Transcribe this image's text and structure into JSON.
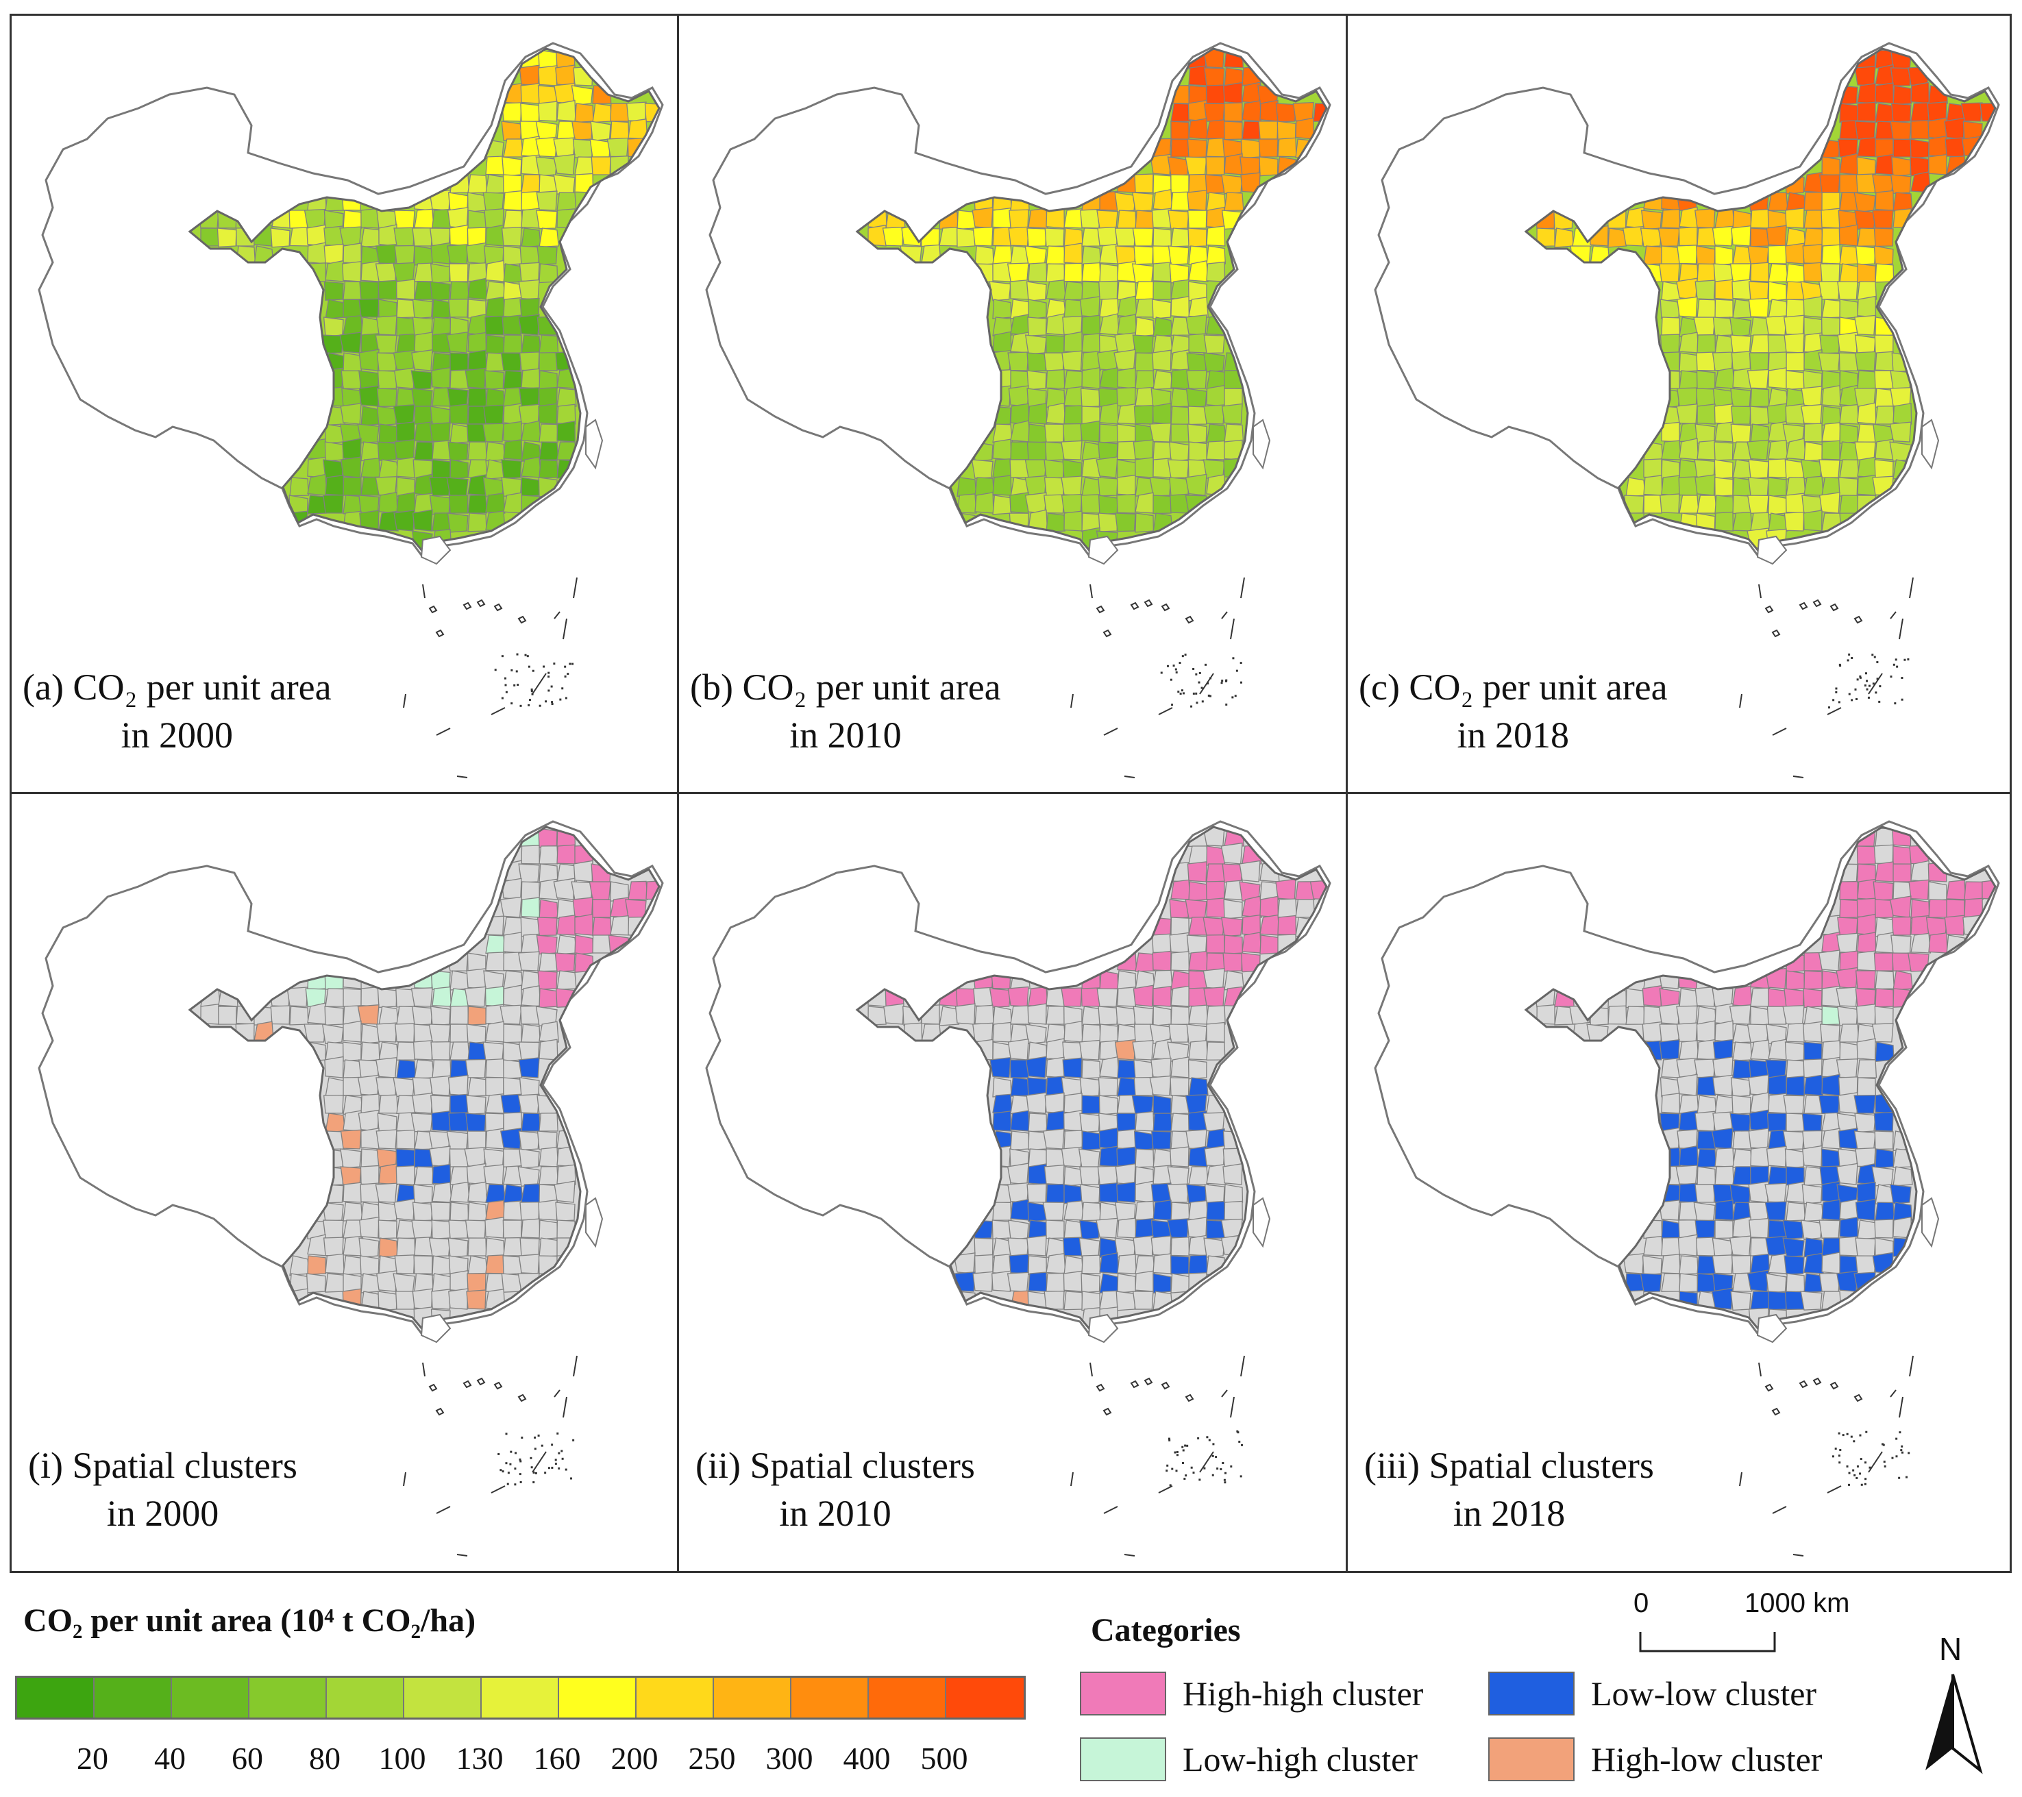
{
  "panels": [
    {
      "id": "a",
      "caption_line1": "(a) CO₂ per unit area",
      "caption_line2": "in 2000",
      "type": "intensity",
      "year": "2000"
    },
    {
      "id": "b",
      "caption_line1": "(b) CO₂ per unit area",
      "caption_line2": "in 2010",
      "type": "intensity",
      "year": "2010"
    },
    {
      "id": "c",
      "caption_line1": "(c) CO₂ per unit area",
      "caption_line2": "in 2018",
      "type": "intensity",
      "year": "2018"
    },
    {
      "id": "i",
      "caption_line1": "(i) Spatial clusters",
      "caption_line2": "in 2000",
      "type": "clusters",
      "year": "2000"
    },
    {
      "id": "ii",
      "caption_line1": "(ii) Spatial clusters",
      "caption_line2": "in 2010",
      "type": "clusters",
      "year": "2010"
    },
    {
      "id": "iii",
      "caption_line1": "(iii) Spatial clusters",
      "caption_line2": "in 2018",
      "type": "clusters",
      "year": "2018"
    }
  ],
  "intensity_legend": {
    "title": "CO₂ per unit area (10⁴ t CO₂/ha)",
    "colors": [
      "#3da510",
      "#55b01a",
      "#6cbb22",
      "#86c92c",
      "#a3d636",
      "#c3e33f",
      "#e6f23a",
      "#ffff1e",
      "#ffd91a",
      "#ffb414",
      "#ff8d0e",
      "#ff6a0a",
      "#ff4a0a"
    ],
    "ticks": [
      "20",
      "40",
      "60",
      "80",
      "100",
      "130",
      "160",
      "200",
      "250",
      "300",
      "400",
      "500"
    ]
  },
  "categories_legend": {
    "title": "Categories",
    "items": [
      {
        "label": "High-high cluster",
        "color": "#f07ab8"
      },
      {
        "label": "Low-low cluster",
        "color": "#1f5fe0"
      },
      {
        "label": "Low-high cluster",
        "color": "#c6f5d8"
      },
      {
        "label": "High-low cluster",
        "color": "#f2a27a"
      }
    ]
  },
  "scale_bar": {
    "start": "0",
    "end": "1000 km"
  },
  "north_arrow": {
    "label": "N"
  },
  "colors": {
    "no_data": "#ffffff",
    "other_cluster": "#d9d9d9",
    "outline": "#777777"
  }
}
